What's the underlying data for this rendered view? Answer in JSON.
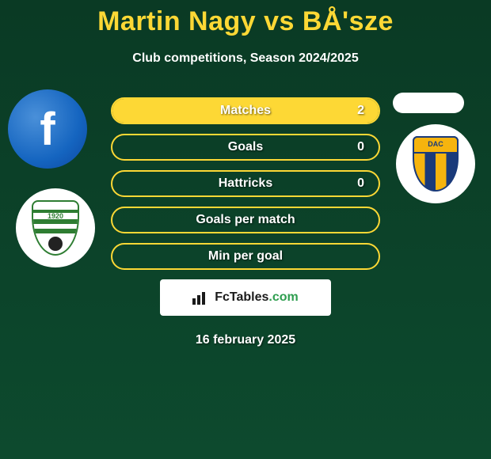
{
  "title": "Martin Nagy vs BÅ'sze",
  "subtitle": "Club competitions, Season 2024/2025",
  "date": "16 february 2025",
  "brand": {
    "name": "FcTables",
    "domain": ".com"
  },
  "left_player": {
    "avatar_kind": "facebook-placeholder"
  },
  "right_player": {
    "avatar_kind": "blank-pill"
  },
  "left_club": {
    "name": "MFK Skalica",
    "year": "1920"
  },
  "right_club": {
    "name": "FC DAC 1904"
  },
  "colors": {
    "accent": "#fdd835",
    "bg_top": "#0a3a24",
    "bg_bottom": "#0d4a2e",
    "text": "#ffffff"
  },
  "stats": [
    {
      "label": "Matches",
      "value": "2",
      "fill_pct": 100
    },
    {
      "label": "Goals",
      "value": "0",
      "fill_pct": 0
    },
    {
      "label": "Hattricks",
      "value": "0",
      "fill_pct": 0
    },
    {
      "label": "Goals per match",
      "value": "",
      "fill_pct": 0
    },
    {
      "label": "Min per goal",
      "value": "",
      "fill_pct": 0
    }
  ]
}
